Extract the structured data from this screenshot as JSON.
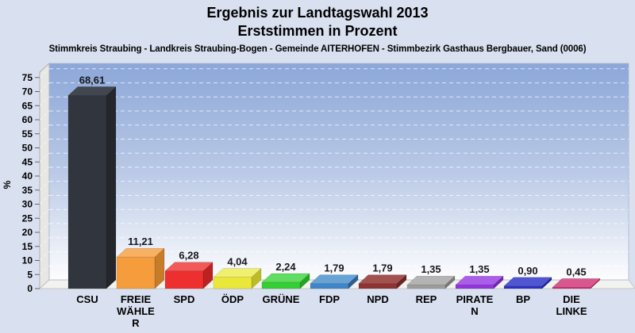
{
  "page": {
    "background": "#d9e0f0"
  },
  "chart_data": {
    "type": "bar",
    "style": "3d-column",
    "title": "Ergebnis zur Landtagswahl 2013",
    "subtitle": "Erststimmen in Prozent",
    "caption": "Stimmkreis Straubing - Landkreis Straubing-Bogen - Gemeinde AITERHOFEN - Stimmbezirk Gasthaus Bergbauer, Sand (0006)",
    "ylabel": "%",
    "ylim": [
      0,
      77
    ],
    "ytick_step": 5,
    "yticks": [
      0,
      5,
      10,
      15,
      20,
      25,
      30,
      35,
      40,
      45,
      50,
      55,
      60,
      65,
      70,
      75
    ],
    "grid": "horizontal-dashed",
    "legend": "none",
    "categories": [
      "CSU",
      "FREIE WÄHLER",
      "SPD",
      "ÖDP",
      "GRÜNE",
      "FDP",
      "NPD",
      "REP",
      "PIRATEN",
      "BP",
      "DIE LINKE"
    ],
    "category_label_lines": [
      [
        "CSU"
      ],
      [
        "FREIE",
        "WÄHLE",
        "R"
      ],
      [
        "SPD"
      ],
      [
        "ÖDP"
      ],
      [
        "GRÜNE"
      ],
      [
        "FDP"
      ],
      [
        "NPD"
      ],
      [
        "REP"
      ],
      [
        "PIRATE",
        "N"
      ],
      [
        "BP"
      ],
      [
        "DIE",
        "LINKE"
      ]
    ],
    "values": [
      68.61,
      11.21,
      6.28,
      4.04,
      2.24,
      1.79,
      1.79,
      1.35,
      1.35,
      0.9,
      0.45
    ],
    "value_labels": [
      "68,61",
      "11,21",
      "6,28",
      "4,04",
      "2,24",
      "1,79",
      "1,79",
      "1,35",
      "1,35",
      "0,90",
      "0,45"
    ],
    "series_colors": [
      {
        "party": "CSU",
        "front": "#31353e",
        "top": "#42464f",
        "side": "#23262c"
      },
      {
        "party": "FREIE WÄHLER",
        "front": "#f59c3d",
        "top": "#f8b063",
        "side": "#c67c28"
      },
      {
        "party": "SPD",
        "front": "#ee2f2f",
        "top": "#f25a5a",
        "side": "#bc2121"
      },
      {
        "party": "ÖDP",
        "front": "#e9e83a",
        "top": "#f0ef6e",
        "side": "#bdbc24"
      },
      {
        "party": "GRÜNE",
        "front": "#33cf33",
        "top": "#61dd61",
        "side": "#23a523"
      },
      {
        "party": "FDP",
        "front": "#3e86c7",
        "top": "#68a3d6",
        "side": "#2c5f92"
      },
      {
        "party": "NPD",
        "front": "#8e3232",
        "top": "#a35050",
        "side": "#6b2323"
      },
      {
        "party": "REP",
        "front": "#9d9d9d",
        "top": "#b4b4b4",
        "side": "#787878"
      },
      {
        "party": "PIRATEN",
        "front": "#9334dd",
        "top": "#ab5fe8",
        "side": "#7325b2"
      },
      {
        "party": "BP",
        "front": "#2b30c3",
        "top": "#5055d2",
        "side": "#1f2394"
      },
      {
        "party": "DIE LINKE",
        "front": "#cc2a70",
        "top": "#da568f",
        "side": "#a21e57"
      }
    ],
    "plot": {
      "wall_gradient_top": "#8ca7d8",
      "wall_gradient_mid": "#b9c9e6",
      "wall_gradient_bottom": "#fdfdfe",
      "wall_border": "#aab4cc",
      "left_wall_color": "#e7e7e3",
      "left_wall_border": "#b0b0ab",
      "floor_color": "#f2f2ee",
      "floor_border": "#c6c6c0",
      "gridline_color": "#ffffff",
      "tick_mark_color": "#666666"
    }
  }
}
